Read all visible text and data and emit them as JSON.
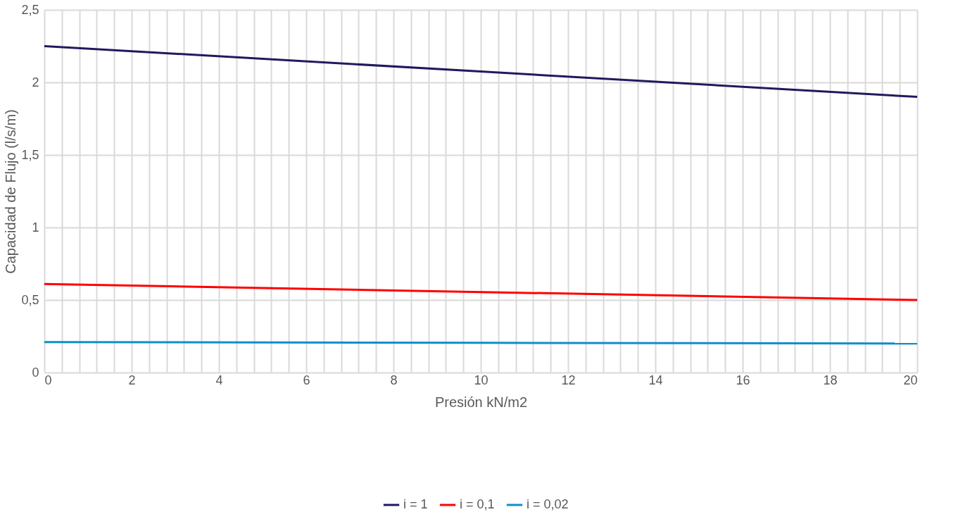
{
  "chart_data": {
    "type": "line",
    "xlabel": "Presión kN/m2",
    "ylabel": "Capacidad de Flujo (l/s/m)",
    "x": [
      0,
      10,
      20
    ],
    "series": [
      {
        "name": "i = 1",
        "color": "#1f1a5e",
        "values": [
          2.25,
          2.075,
          1.9
        ]
      },
      {
        "name": "i = 0,1",
        "color": "#ff0000",
        "values": [
          0.61,
          0.555,
          0.5
        ]
      },
      {
        "name": "i = 0,02",
        "color": "#0f8fc8",
        "values": [
          0.21,
          0.205,
          0.2
        ]
      }
    ],
    "xlim": [
      0,
      20
    ],
    "xticks": [
      0,
      {
        "value": 0.4,
        "label": null
      },
      {
        "value": 0.8,
        "label": null
      },
      {
        "value": 1.2,
        "label": null
      },
      {
        "value": 1.6,
        "label": null
      },
      2,
      {
        "value": 2.4,
        "label": null
      },
      {
        "value": 2.8,
        "label": null
      },
      {
        "value": 3.2,
        "label": null
      },
      {
        "value": 3.6,
        "label": null
      },
      4,
      {
        "value": 4.4,
        "label": null
      },
      {
        "value": 4.8,
        "label": null
      },
      {
        "value": 5.2,
        "label": null
      },
      {
        "value": 5.6,
        "label": null
      },
      6,
      {
        "value": 6.4,
        "label": null
      },
      {
        "value": 6.8,
        "label": null
      },
      {
        "value": 7.2,
        "label": null
      },
      {
        "value": 7.6,
        "label": null
      },
      8,
      {
        "value": 8.4,
        "label": null
      },
      {
        "value": 8.8,
        "label": null
      },
      {
        "value": 9.2,
        "label": null
      },
      {
        "value": 9.6,
        "label": null
      },
      10,
      {
        "value": 10.4,
        "label": null
      },
      {
        "value": 10.8,
        "label": null
      },
      {
        "value": 11.2,
        "label": null
      },
      {
        "value": 11.6,
        "label": null
      },
      12,
      {
        "value": 12.4,
        "label": null
      },
      {
        "value": 12.8,
        "label": null
      },
      {
        "value": 13.2,
        "label": null
      },
      {
        "value": 13.6,
        "label": null
      },
      14,
      {
        "value": 14.4,
        "label": null
      },
      {
        "value": 14.8,
        "label": null
      },
      {
        "value": 15.2,
        "label": null
      },
      {
        "value": 15.6,
        "label": null
      },
      16,
      {
        "value": 16.4,
        "label": null
      },
      {
        "value": 16.8,
        "label": null
      },
      {
        "value": 17.2,
        "label": null
      },
      {
        "value": 17.6,
        "label": null
      },
      18,
      {
        "value": 18.4,
        "label": null
      },
      {
        "value": 18.8,
        "label": null
      },
      {
        "value": 19.2,
        "label": null
      },
      {
        "value": 19.6,
        "label": null
      },
      20
    ],
    "ylim": [
      0,
      2.5
    ],
    "yticks": [
      0,
      {
        "value": 0.5,
        "label": "0,5"
      },
      1,
      {
        "value": 1.5,
        "label": "1,5"
      },
      2,
      {
        "value": 2.5,
        "label": "2,5"
      }
    ],
    "grid": true,
    "legend": "bottom",
    "marker": "none",
    "line_style": "solid"
  }
}
